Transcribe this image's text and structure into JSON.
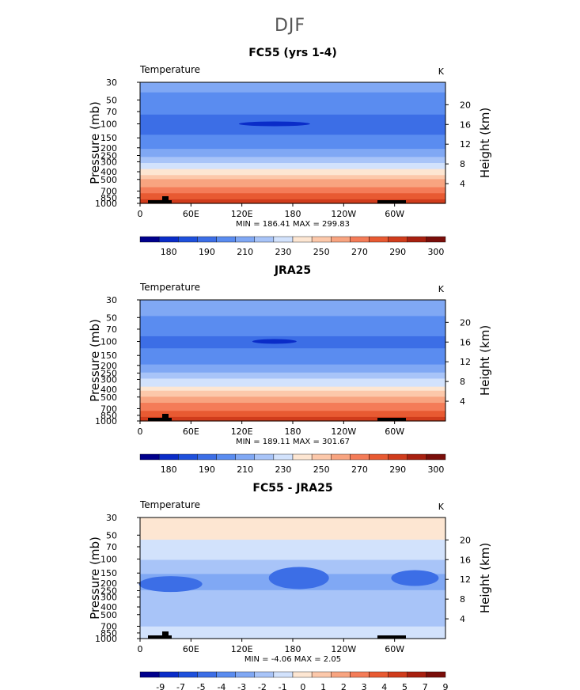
{
  "page_title": "DJF",
  "panels": [
    {
      "title": "FC55 (yrs 1-4)",
      "left_label": "Temperature",
      "unit_label": "K",
      "stats": "MIN = 186.41   MAX = 299.83",
      "colorbar_labels": [
        "180",
        "190",
        "210",
        "230",
        "250",
        "270",
        "290",
        "300"
      ]
    },
    {
      "title": "JRA25",
      "left_label": "Temperature",
      "unit_label": "K",
      "stats": "MIN = 189.11   MAX = 301.67",
      "colorbar_labels": [
        "180",
        "190",
        "210",
        "230",
        "250",
        "270",
        "290",
        "300"
      ]
    },
    {
      "title": "FC55 - JRA25",
      "left_label": "Temperature",
      "unit_label": "K",
      "stats": "MIN =  -4.06   MAX =   2.05",
      "colorbar_labels": [
        "-9",
        "-7",
        "-5",
        "-4",
        "-3",
        "-2",
        "-1",
        "0",
        "1",
        "2",
        "3",
        "4",
        "5",
        "7",
        "9"
      ]
    }
  ],
  "chart_data": [
    {
      "type": "heatmap",
      "title": "FC55 (yrs 1-4)",
      "variable": "Temperature",
      "unit": "K",
      "xlabel": "",
      "ylabel": "Pressure (mb)",
      "y2label": "Height (km)",
      "x_ticks": [
        "0",
        "60E",
        "120E",
        "180",
        "120W",
        "60W"
      ],
      "y_ticks": [
        "30",
        "50",
        "70",
        "100",
        "150",
        "200",
        "250",
        "300",
        "400",
        "500",
        "700",
        "850",
        "1000"
      ],
      "y2_ticks": [
        "20",
        "16",
        "12",
        "8",
        "4"
      ],
      "min": 186.41,
      "max": 299.83,
      "colorbar": {
        "labels": [
          "180",
          "190",
          "210",
          "230",
          "250",
          "270",
          "290",
          "300"
        ],
        "colors": [
          "#00008c",
          "#0a2cc8",
          "#1e50dc",
          "#3c6ee6",
          "#5a8cf0",
          "#80a8f4",
          "#a8c4f8",
          "#d2e2fc",
          "#fde6d2",
          "#fcc8aa",
          "#f8a480",
          "#f47c58",
          "#e85a32",
          "#d03c1c",
          "#a82010",
          "#7a0e0a"
        ]
      },
      "profile_pressure": [
        "30",
        "50",
        "70",
        "100",
        "150",
        "200",
        "250",
        "300",
        "400",
        "500",
        "700",
        "850",
        "1000"
      ],
      "profile_temperature": [
        218,
        211,
        206,
        201,
        206,
        213,
        221,
        229,
        244,
        257,
        272,
        281,
        287
      ]
    },
    {
      "type": "heatmap",
      "title": "JRA25",
      "variable": "Temperature",
      "unit": "K",
      "xlabel": "",
      "ylabel": "Pressure (mb)",
      "y2label": "Height (km)",
      "x_ticks": [
        "0",
        "60E",
        "120E",
        "180",
        "120W",
        "60W"
      ],
      "y_ticks": [
        "30",
        "50",
        "70",
        "100",
        "150",
        "200",
        "250",
        "300",
        "400",
        "500",
        "700",
        "850",
        "1000"
      ],
      "y2_ticks": [
        "20",
        "16",
        "12",
        "8",
        "4"
      ],
      "min": 189.11,
      "max": 301.67,
      "colorbar": {
        "labels": [
          "180",
          "190",
          "210",
          "230",
          "250",
          "270",
          "290",
          "300"
        ],
        "colors": [
          "#00008c",
          "#0a2cc8",
          "#1e50dc",
          "#3c6ee6",
          "#5a8cf0",
          "#80a8f4",
          "#a8c4f8",
          "#d2e2fc",
          "#fde6d2",
          "#fcc8aa",
          "#f8a480",
          "#f47c58",
          "#e85a32",
          "#d03c1c",
          "#a82010",
          "#7a0e0a"
        ]
      },
      "profile_pressure": [
        "30",
        "50",
        "70",
        "100",
        "150",
        "200",
        "250",
        "300",
        "400",
        "500",
        "700",
        "850",
        "1000"
      ],
      "profile_temperature": [
        219,
        213,
        208,
        202,
        208,
        215,
        223,
        231,
        245,
        258,
        273,
        283,
        289
      ]
    },
    {
      "type": "heatmap",
      "title": "FC55 - JRA25",
      "variable": "Temperature",
      "unit": "K",
      "xlabel": "",
      "ylabel": "Pressure (mb)",
      "y2label": "Height (km)",
      "x_ticks": [
        "0",
        "60E",
        "120E",
        "180",
        "120W",
        "60W"
      ],
      "y_ticks": [
        "30",
        "50",
        "70",
        "100",
        "150",
        "200",
        "250",
        "300",
        "400",
        "500",
        "700",
        "850",
        "1000"
      ],
      "y2_ticks": [
        "20",
        "16",
        "12",
        "8",
        "4"
      ],
      "min": -4.06,
      "max": 2.05,
      "colorbar": {
        "labels": [
          "-9",
          "-7",
          "-5",
          "-4",
          "-3",
          "-2",
          "-1",
          "0",
          "1",
          "2",
          "3",
          "4",
          "5",
          "7",
          "9"
        ],
        "colors": [
          "#00008c",
          "#0a2cc8",
          "#1e50dc",
          "#3c6ee6",
          "#5a8cf0",
          "#80a8f4",
          "#a8c4f8",
          "#d2e2fc",
          "#fde6d2",
          "#fcc8aa",
          "#f8a480",
          "#f47c58",
          "#e85a32",
          "#d03c1c",
          "#a82010",
          "#7a0e0a"
        ]
      },
      "profile_pressure": [
        "30",
        "50",
        "70",
        "100",
        "150",
        "200",
        "250",
        "300",
        "400",
        "500",
        "700",
        "850",
        "1000"
      ],
      "profile_difference": [
        0.5,
        0.3,
        -0.5,
        -1,
        -2,
        -2.5,
        -2,
        -1.5,
        -1.5,
        -1.5,
        -1,
        -1,
        -1
      ]
    }
  ]
}
